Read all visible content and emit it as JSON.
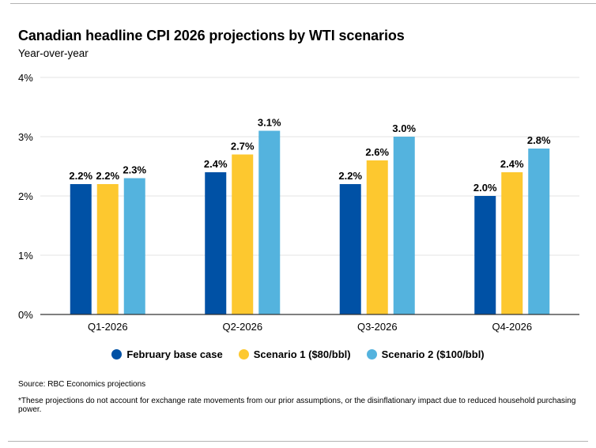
{
  "chart_data": {
    "type": "bar",
    "title": "Canadian headline CPI 2026 projections by WTI scenarios",
    "subtitle": "Year-over-year",
    "xlabel": "",
    "ylabel": "",
    "categories": [
      "Q1-2026",
      "Q2-2026",
      "Q3-2026",
      "Q4-2026"
    ],
    "series": [
      {
        "name": "February base case",
        "color": "#0051a5",
        "values": [
          2.2,
          2.4,
          2.2,
          2.0
        ],
        "labels": [
          "2.2%",
          "2.4%",
          "2.2%",
          "2.0%"
        ]
      },
      {
        "name": "Scenario 1 ($80/bbl)",
        "color": "#fdc82f",
        "values": [
          2.2,
          2.7,
          2.6,
          2.4
        ],
        "labels": [
          "2.2%",
          "2.7%",
          "2.6%",
          "2.4%"
        ]
      },
      {
        "name": "Scenario 2 ($100/bbl)",
        "color": "#54b3de",
        "values": [
          2.3,
          3.1,
          3.0,
          2.8
        ],
        "labels": [
          "2.3%",
          "3.1%",
          "3.0%",
          "2.8%"
        ]
      }
    ],
    "ylim": [
      0,
      4
    ],
    "yticks": [
      0,
      1,
      2,
      3,
      4
    ],
    "ytick_labels": [
      "0%",
      "1%",
      "2%",
      "3%",
      "4%"
    ],
    "grid": true,
    "legend_position": "bottom-center"
  },
  "footer": {
    "source": "Source: RBC Economics projections",
    "note": "*These projections do not account for exchange rate movements from our prior assumptions, or the disinflationary impact due to reduced household purchasing power."
  }
}
